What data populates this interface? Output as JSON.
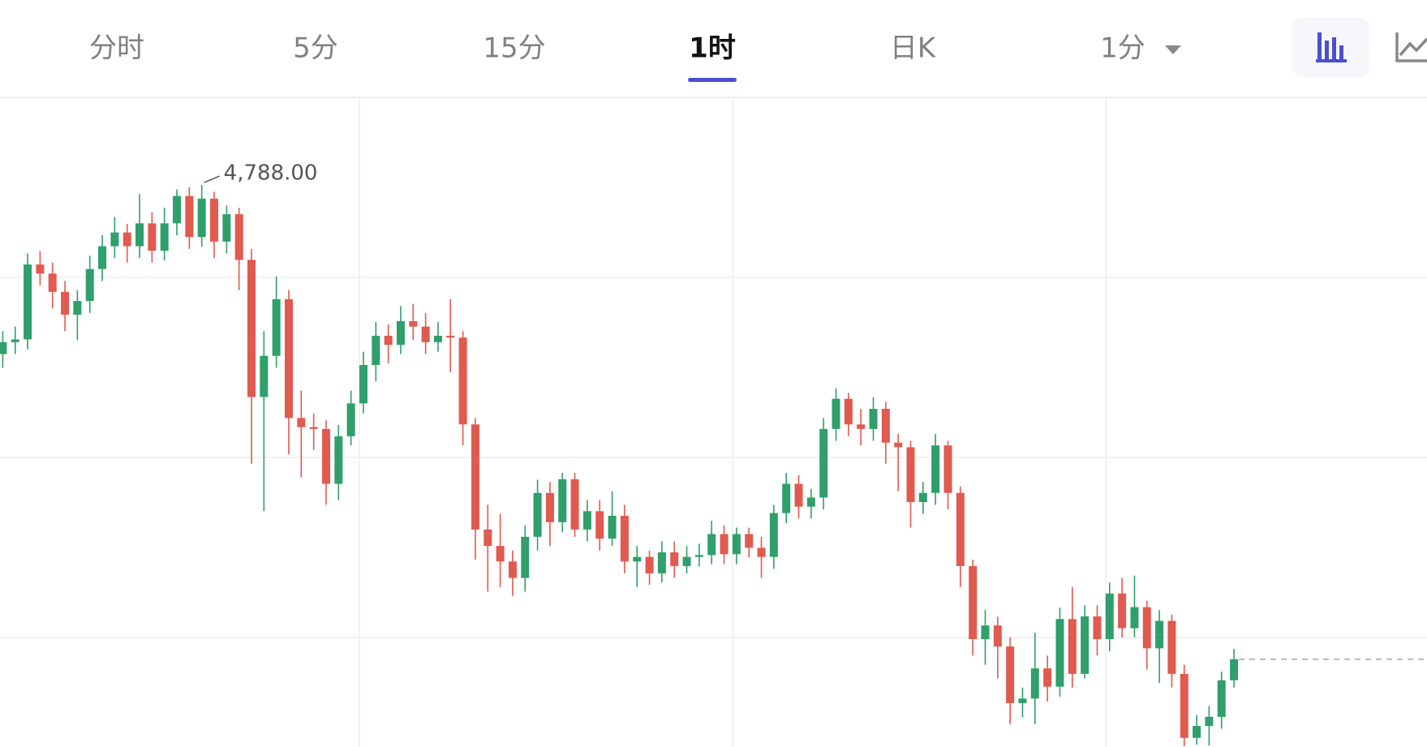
{
  "tabs": [
    "分时",
    "5分",
    "15分",
    "1时",
    "日K",
    "1分"
  ],
  "active_tab": 3,
  "chart_data": {
    "type": "candlestick",
    "high_label": "4,788.00",
    "up_color": "#2f9f6b",
    "down_color": "#e05a4f",
    "ylim": [
      4665,
      4807
    ],
    "open": [
      4751.0,
      4753.6,
      4754.2,
      4770.6,
      4768.6,
      4764.6,
      4759.6,
      4762.6,
      4769.6,
      4774.6,
      4777.6,
      4774.6,
      4779.6,
      4773.6,
      4779.6,
      4785.6,
      4776.6,
      4785.0,
      4775.6,
      4781.6,
      4771.6,
      4741.6,
      4750.6,
      4763.0,
      4737.0,
      4735.0,
      4734.6,
      4722.6,
      4733.0,
      4740.2,
      4748.6,
      4755.0,
      4753.0,
      4758.2,
      4757.0,
      4753.6,
      4755.0,
      4754.6,
      4735.6,
      4712.6,
      4709.0,
      4705.6,
      4702.0,
      4711.0,
      4720.6,
      4714.2,
      4723.6,
      4712.6,
      4716.6,
      4710.6,
      4715.6,
      4705.6,
      4706.6,
      4703.0,
      4707.6,
      4704.6,
      4706.6,
      4707.0,
      4711.6,
      4707.2,
      4711.6,
      4708.6,
      4706.6,
      4716.2,
      4722.6,
      4717.6,
      4719.6,
      4734.6,
      4741.2,
      4735.6,
      4734.6,
      4739.0,
      4731.6,
      4730.6,
      4718.6,
      4720.6,
      4731.0,
      4720.6,
      4704.6,
      4688.6,
      4691.6,
      4687.0,
      4674.6,
      4675.6,
      4682.2,
      4678.2,
      4693.0,
      4681.0,
      4693.6,
      4688.6,
      4698.6,
      4691.0,
      4695.6,
      4686.6,
      4692.6,
      4681.0,
      4667.0,
      4669.6,
      4671.6,
      4679.6
    ],
    "high": [
      4756.0,
      4757.0,
      4773.0,
      4773.5,
      4771.0,
      4767.0,
      4765.0,
      4772.5,
      4777.0,
      4781.0,
      4779.5,
      4786.0,
      4782.0,
      4783.0,
      4787.0,
      4787.5,
      4788.0,
      4786.5,
      4783.5,
      4783.0,
      4774.0,
      4756.0,
      4768.0,
      4765.0,
      4743.0,
      4738.0,
      4736.5,
      4735.5,
      4743.0,
      4751.5,
      4758.0,
      4757.5,
      4761.5,
      4762.0,
      4760.0,
      4758.0,
      4763.0,
      4756.0,
      4737.0,
      4718.0,
      4716.0,
      4708.0,
      4713.5,
      4723.5,
      4723.0,
      4725.0,
      4725.0,
      4719.0,
      4719.0,
      4721.0,
      4718.0,
      4709.0,
      4708.0,
      4710.0,
      4710.0,
      4709.0,
      4709.5,
      4714.5,
      4713.5,
      4713.0,
      4713.0,
      4711.0,
      4718.0,
      4725.0,
      4724.5,
      4721.5,
      4737.0,
      4743.5,
      4742.5,
      4739.0,
      4741.5,
      4740.5,
      4733.5,
      4732.0,
      4723.0,
      4733.5,
      4732.0,
      4722.0,
      4706.0,
      4695.0,
      4693.5,
      4689.0,
      4678.0,
      4690.0,
      4685.0,
      4695.5,
      4700.0,
      4696.0,
      4696.0,
      4701.0,
      4702.0,
      4702.5,
      4697.0,
      4695.0,
      4694.0,
      4683.0,
      4672.0,
      4674.0,
      4681.5,
      4686.5
    ],
    "low": [
      4748.0,
      4751.0,
      4752.0,
      4766.0,
      4761.0,
      4756.0,
      4754.0,
      4760.0,
      4767.0,
      4772.0,
      4771.0,
      4772.0,
      4771.0,
      4771.5,
      4777.0,
      4774.0,
      4774.5,
      4772.0,
      4773.0,
      4765.0,
      4727.0,
      4716.6,
      4748.0,
      4729.0,
      4724.0,
      4730.0,
      4718.0,
      4719.0,
      4731.0,
      4738.0,
      4745.0,
      4749.0,
      4751.0,
      4754.0,
      4751.0,
      4751.5,
      4747.0,
      4731.0,
      4706.0,
      4699.0,
      4700.0,
      4698.0,
      4699.0,
      4708.0,
      4709.0,
      4712.0,
      4711.0,
      4710.0,
      4708.0,
      4709.0,
      4703.0,
      4700.0,
      4700.5,
      4701.0,
      4702.0,
      4703.0,
      4704.5,
      4705.0,
      4705.0,
      4705.0,
      4706.5,
      4702.0,
      4704.0,
      4714.0,
      4715.0,
      4715.0,
      4717.0,
      4732.0,
      4733.0,
      4731.0,
      4732.0,
      4727.0,
      4721.0,
      4713.0,
      4716.0,
      4718.0,
      4717.0,
      4700.0,
      4685.0,
      4683.0,
      4680.0,
      4670.0,
      4671.5,
      4670.0,
      4675.0,
      4676.0,
      4678.0,
      4680.0,
      4685.0,
      4686.0,
      4689.0,
      4689.0,
      4682.0,
      4679.0,
      4678.0,
      4665.2,
      4665.5,
      4665.3,
      4669.0,
      4678.0
    ],
    "close": [
      4753.6,
      4754.2,
      4770.6,
      4768.6,
      4764.6,
      4759.6,
      4762.6,
      4769.6,
      4774.6,
      4777.6,
      4774.6,
      4779.6,
      4773.6,
      4779.6,
      4785.6,
      4776.6,
      4785.0,
      4775.6,
      4781.6,
      4771.6,
      4741.6,
      4750.6,
      4763.0,
      4737.0,
      4735.0,
      4734.6,
      4722.6,
      4733.0,
      4740.2,
      4748.6,
      4755.0,
      4753.0,
      4758.2,
      4757.0,
      4753.6,
      4755.0,
      4754.6,
      4735.6,
      4712.6,
      4709.0,
      4705.6,
      4702.0,
      4711.0,
      4720.6,
      4714.2,
      4723.6,
      4712.6,
      4716.6,
      4710.6,
      4715.6,
      4705.6,
      4706.6,
      4703.0,
      4707.6,
      4704.6,
      4706.6,
      4707.0,
      4711.6,
      4707.2,
      4711.6,
      4708.6,
      4706.6,
      4716.2,
      4722.6,
      4717.6,
      4719.6,
      4734.6,
      4741.2,
      4735.6,
      4734.6,
      4739.0,
      4731.6,
      4730.6,
      4718.6,
      4720.6,
      4731.0,
      4720.6,
      4704.6,
      4688.6,
      4691.6,
      4687.0,
      4674.6,
      4675.6,
      4682.2,
      4678.2,
      4693.0,
      4681.0,
      4693.6,
      4688.6,
      4698.6,
      4691.0,
      4695.6,
      4686.6,
      4692.6,
      4681.0,
      4667.0,
      4669.6,
      4671.6,
      4679.6,
      4684.2
    ]
  }
}
